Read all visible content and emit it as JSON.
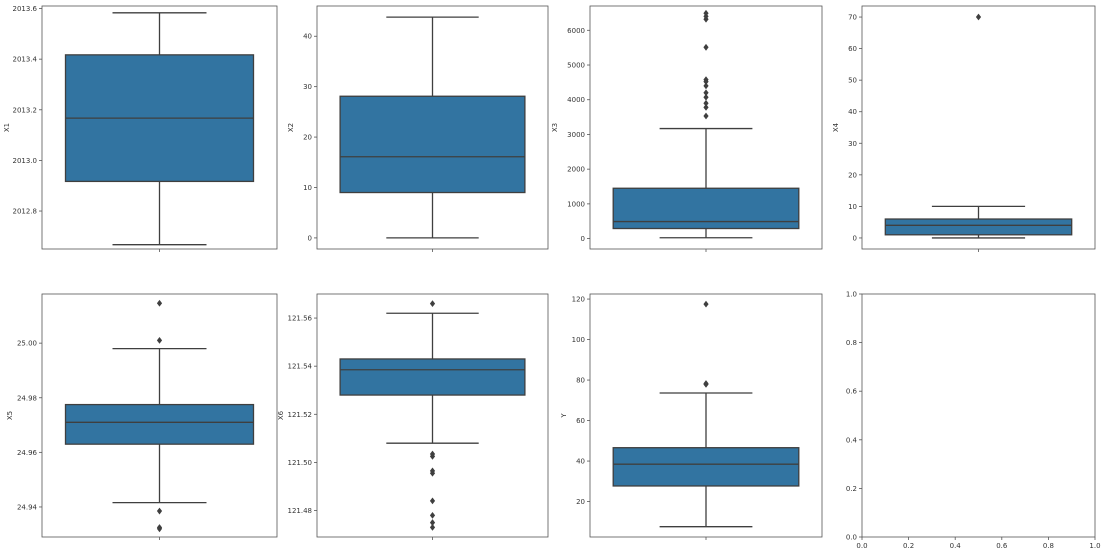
{
  "chart_data": [
    {
      "type": "box",
      "ylabel": "X1",
      "ylim": [
        2012.65,
        2013.61
      ],
      "yticks": [
        2012.8,
        2013.0,
        2013.2,
        2013.4,
        2013.6
      ],
      "ytick_labels": [
        "2012.8",
        "2013.0",
        "2013.2",
        "2013.4",
        "2013.6"
      ],
      "box": {
        "whisker_low": 2012.667,
        "q1": 2012.917,
        "median": 2013.167,
        "q3": 2013.417,
        "whisker_high": 2013.583
      },
      "outliers": []
    },
    {
      "type": "box",
      "ylabel": "X2",
      "ylim": [
        -2.2,
        46.0
      ],
      "yticks": [
        0,
        10,
        20,
        30,
        40
      ],
      "ytick_labels": [
        "0",
        "10",
        "20",
        "30",
        "40"
      ],
      "box": {
        "whisker_low": 0,
        "q1": 9.0,
        "median": 16.1,
        "q3": 28.1,
        "whisker_high": 43.8
      },
      "outliers": []
    },
    {
      "type": "box",
      "ylabel": "X3",
      "ylim": [
        -300,
        6700
      ],
      "yticks": [
        0,
        1000,
        2000,
        3000,
        4000,
        5000,
        6000
      ],
      "ytick_labels": [
        "0",
        "1000",
        "2000",
        "3000",
        "4000",
        "5000",
        "6000"
      ],
      "box": {
        "whisker_low": 23,
        "q1": 290,
        "median": 490,
        "q3": 1450,
        "whisker_high": 3170
      },
      "outliers": [
        3530,
        3780,
        3900,
        4070,
        4200,
        4400,
        4520,
        4580,
        5510,
        6320,
        6400,
        6490
      ]
    },
    {
      "type": "box",
      "ylabel": "X4",
      "ylim": [
        -3.5,
        73.5
      ],
      "yticks": [
        0,
        10,
        20,
        30,
        40,
        50,
        60,
        70
      ],
      "ytick_labels": [
        "0",
        "10",
        "20",
        "30",
        "40",
        "50",
        "60",
        "70"
      ],
      "box": {
        "whisker_low": 0,
        "q1": 1,
        "median": 4,
        "q3": 6,
        "whisker_high": 10
      },
      "outliers": [
        70
      ]
    },
    {
      "type": "box",
      "ylabel": "X5",
      "ylim": [
        24.929,
        25.018
      ],
      "yticks": [
        24.94,
        24.96,
        24.98,
        25.0
      ],
      "ytick_labels": [
        "24.94",
        "24.96",
        "24.98",
        "25.00"
      ],
      "box": {
        "whisker_low": 24.9416,
        "q1": 24.963,
        "median": 24.971,
        "q3": 24.9775,
        "whisker_high": 24.998
      },
      "outliers": [
        24.932,
        24.9325,
        24.9385,
        25.001,
        25.0146
      ]
    },
    {
      "type": "box",
      "ylabel": "X6",
      "ylim": [
        121.469,
        121.57
      ],
      "yticks": [
        121.48,
        121.5,
        121.52,
        121.54,
        121.56
      ],
      "ytick_labels": [
        "121.48",
        "121.50",
        "121.52",
        "121.54",
        "121.56"
      ],
      "box": {
        "whisker_low": 121.508,
        "q1": 121.528,
        "median": 121.5385,
        "q3": 121.543,
        "whisker_high": 121.562
      },
      "outliers": [
        121.473,
        121.475,
        121.478,
        121.484,
        121.4955,
        121.4965,
        121.5025,
        121.5035,
        121.566
      ]
    },
    {
      "type": "box",
      "ylabel": "Y",
      "ylim": [
        2.5,
        122.5
      ],
      "yticks": [
        20,
        40,
        60,
        80,
        100,
        120
      ],
      "ytick_labels": [
        "20",
        "40",
        "60",
        "80",
        "100",
        "120"
      ],
      "box": {
        "whisker_low": 7.6,
        "q1": 27.7,
        "median": 38.45,
        "q3": 46.6,
        "whisker_high": 73.6
      },
      "outliers": [
        77.9,
        78.3,
        117.5
      ]
    },
    {
      "type": "empty",
      "ylabel": "",
      "xlim": [
        0,
        1
      ],
      "ylim": [
        0,
        1
      ],
      "xticks": [
        0,
        0.2,
        0.4,
        0.6,
        0.8,
        1.0
      ],
      "xtick_labels": [
        "0.0",
        "0.2",
        "0.4",
        "0.6",
        "0.8",
        "1.0"
      ],
      "yticks": [
        0,
        0.2,
        0.4,
        0.6,
        0.8,
        1.0
      ],
      "ytick_labels": [
        "0.0",
        "0.2",
        "0.4",
        "0.6",
        "0.8",
        "1.0"
      ]
    }
  ],
  "colors": {
    "box_fill": "#3274a1",
    "line": "#3f3f3f",
    "frame": "#555555",
    "text": "#333333"
  }
}
